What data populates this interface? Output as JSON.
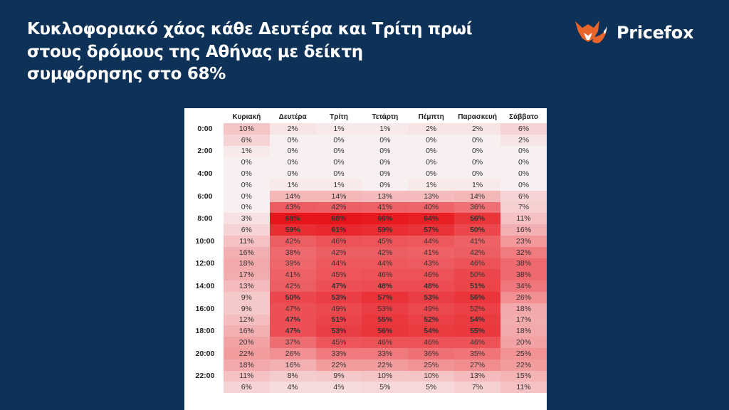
{
  "headline": {
    "lines": [
      "Κυκλοφοριακό χάος κάθε Δευτέρα και Τρίτη πρωί",
      "στους δρόμους της Αθήνας με δείκτη",
      "συμφόρησης στο 68%"
    ]
  },
  "brand": {
    "name": "Pricefox",
    "logo_icon": "fox-icon",
    "logo_color": "#e8642a"
  },
  "colors": {
    "background": "#0e3257",
    "heat_low": "#f8f0f0",
    "heat_high": "#e8141b"
  },
  "chart_data": {
    "type": "heatmap",
    "columns": [
      "Κυριακή",
      "Δευτέρα",
      "Τρίτη",
      "Τετάρτη",
      "Πέμπτη",
      "Παρασκευή",
      "Σάββατο"
    ],
    "rows": [
      {
        "hour": "0:00",
        "values": [
          10,
          2,
          1,
          1,
          2,
          2,
          6
        ]
      },
      {
        "hour": "",
        "values": [
          6,
          0,
          0,
          0,
          0,
          0,
          2
        ]
      },
      {
        "hour": "2:00",
        "values": [
          1,
          0,
          0,
          0,
          0,
          0,
          0
        ]
      },
      {
        "hour": "",
        "values": [
          0,
          0,
          0,
          0,
          0,
          0,
          0
        ]
      },
      {
        "hour": "4:00",
        "values": [
          0,
          0,
          0,
          0,
          0,
          0,
          0
        ]
      },
      {
        "hour": "",
        "values": [
          0,
          1,
          1,
          0,
          1,
          1,
          0
        ]
      },
      {
        "hour": "6:00",
        "values": [
          0,
          14,
          14,
          13,
          13,
          14,
          6
        ]
      },
      {
        "hour": "",
        "values": [
          0,
          43,
          42,
          41,
          40,
          36,
          7
        ]
      },
      {
        "hour": "8:00",
        "values": [
          3,
          68,
          68,
          66,
          64,
          56,
          11
        ]
      },
      {
        "hour": "",
        "values": [
          6,
          59,
          61,
          59,
          57,
          50,
          16
        ]
      },
      {
        "hour": "10:00",
        "values": [
          11,
          42,
          46,
          45,
          44,
          41,
          23
        ]
      },
      {
        "hour": "",
        "values": [
          16,
          38,
          42,
          42,
          41,
          42,
          32
        ]
      },
      {
        "hour": "12:00",
        "values": [
          18,
          39,
          44,
          44,
          43,
          46,
          38
        ]
      },
      {
        "hour": "",
        "values": [
          17,
          41,
          45,
          46,
          46,
          50,
          38
        ]
      },
      {
        "hour": "14:00",
        "values": [
          13,
          42,
          47,
          48,
          48,
          51,
          34
        ]
      },
      {
        "hour": "",
        "values": [
          9,
          50,
          53,
          57,
          53,
          56,
          26
        ]
      },
      {
        "hour": "16:00",
        "values": [
          9,
          47,
          49,
          53,
          49,
          52,
          18
        ]
      },
      {
        "hour": "",
        "values": [
          12,
          47,
          51,
          55,
          52,
          54,
          17
        ]
      },
      {
        "hour": "18:00",
        "values": [
          16,
          47,
          53,
          56,
          54,
          55,
          18
        ]
      },
      {
        "hour": "",
        "values": [
          20,
          37,
          45,
          46,
          46,
          46,
          20
        ]
      },
      {
        "hour": "20:00",
        "values": [
          22,
          26,
          33,
          33,
          36,
          35,
          25
        ]
      },
      {
        "hour": "",
        "values": [
          18,
          16,
          22,
          22,
          25,
          27,
          22
        ]
      },
      {
        "hour": "22:00",
        "values": [
          11,
          8,
          9,
          10,
          10,
          13,
          15
        ]
      },
      {
        "hour": "",
        "values": [
          6,
          4,
          4,
          5,
          5,
          7,
          11
        ]
      }
    ],
    "bold_cells": [
      [
        8,
        1
      ],
      [
        8,
        2
      ],
      [
        8,
        3
      ],
      [
        8,
        4
      ],
      [
        8,
        5
      ],
      [
        9,
        1
      ],
      [
        9,
        2
      ],
      [
        9,
        3
      ],
      [
        9,
        4
      ],
      [
        9,
        5
      ],
      [
        14,
        2
      ],
      [
        14,
        3
      ],
      [
        14,
        4
      ],
      [
        14,
        5
      ],
      [
        15,
        1
      ],
      [
        15,
        2
      ],
      [
        15,
        3
      ],
      [
        15,
        4
      ],
      [
        15,
        5
      ],
      [
        17,
        1
      ],
      [
        17,
        2
      ],
      [
        17,
        3
      ],
      [
        17,
        4
      ],
      [
        17,
        5
      ],
      [
        18,
        1
      ],
      [
        18,
        2
      ],
      [
        18,
        3
      ],
      [
        18,
        4
      ],
      [
        18,
        5
      ]
    ],
    "unit": "%",
    "scale_max": 68
  }
}
